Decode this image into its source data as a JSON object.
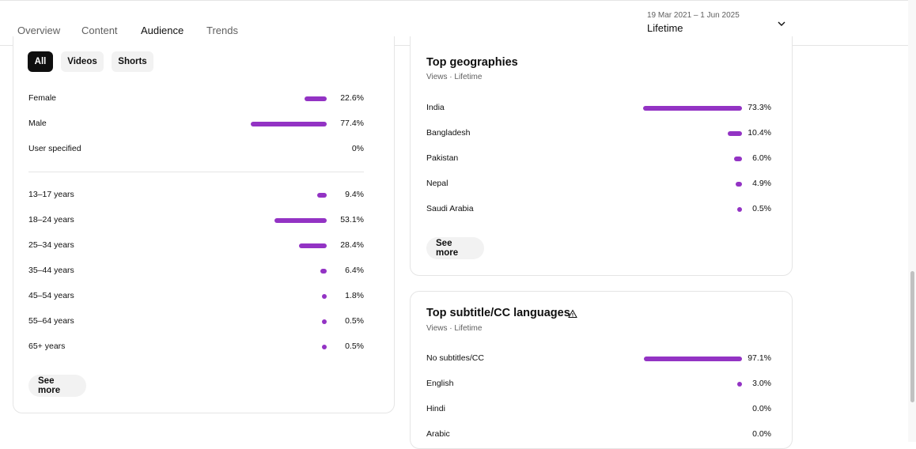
{
  "tabs": [
    {
      "label": "Overview"
    },
    {
      "label": "Content"
    },
    {
      "label": "Audience"
    },
    {
      "label": "Trends"
    }
  ],
  "date_range": {
    "range": "19 Mar 2021 – 1 Jun 2025",
    "period": "Lifetime"
  },
  "filters": [
    "All",
    "Videos",
    "Shorts"
  ],
  "gender": [
    {
      "label": "Female",
      "value": "22.6%",
      "pct": 22.6
    },
    {
      "label": "Male",
      "value": "77.4%",
      "pct": 77.4
    },
    {
      "label": "User specified",
      "value": "0%",
      "pct": 0
    }
  ],
  "age": [
    {
      "label": "13–17 years",
      "value": "9.4%",
      "pct": 9.4
    },
    {
      "label": "18–24 years",
      "value": "53.1%",
      "pct": 53.1
    },
    {
      "label": "25–34 years",
      "value": "28.4%",
      "pct": 28.4
    },
    {
      "label": "35–44 years",
      "value": "6.4%",
      "pct": 6.4
    },
    {
      "label": "45–54 years",
      "value": "1.8%",
      "pct": 1.8
    },
    {
      "label": "55–64 years",
      "value": "0.5%",
      "pct": 0.5
    },
    {
      "label": "65+ years",
      "value": "0.5%",
      "pct": 0.5
    }
  ],
  "see_more": "See more",
  "geographies": {
    "title": "Top geographies",
    "subtitle": "Views · Lifetime",
    "rows": [
      {
        "label": "India",
        "value": "73.3%",
        "pct": 73.3
      },
      {
        "label": "Bangladesh",
        "value": "10.4%",
        "pct": 10.4
      },
      {
        "label": "Pakistan",
        "value": "6.0%",
        "pct": 6.0
      },
      {
        "label": "Nepal",
        "value": "4.9%",
        "pct": 4.9
      },
      {
        "label": "Saudi Arabia",
        "value": "0.5%",
        "pct": 0.5
      }
    ]
  },
  "languages": {
    "title": "Top subtitle/CC languages",
    "subtitle": "Views · Lifetime",
    "rows": [
      {
        "label": "No subtitles/CC",
        "value": "97.1%",
        "pct": 97.1
      },
      {
        "label": "English",
        "value": "3.0%",
        "pct": 3.0
      },
      {
        "label": "Hindi",
        "value": "0.0%",
        "pct": 0.0
      },
      {
        "label": "Arabic",
        "value": "0.0%",
        "pct": 0.0
      }
    ]
  },
  "colors": {
    "accent": "#9333c4"
  },
  "icons": [
    "chevron-down-icon",
    "warning-icon"
  ]
}
